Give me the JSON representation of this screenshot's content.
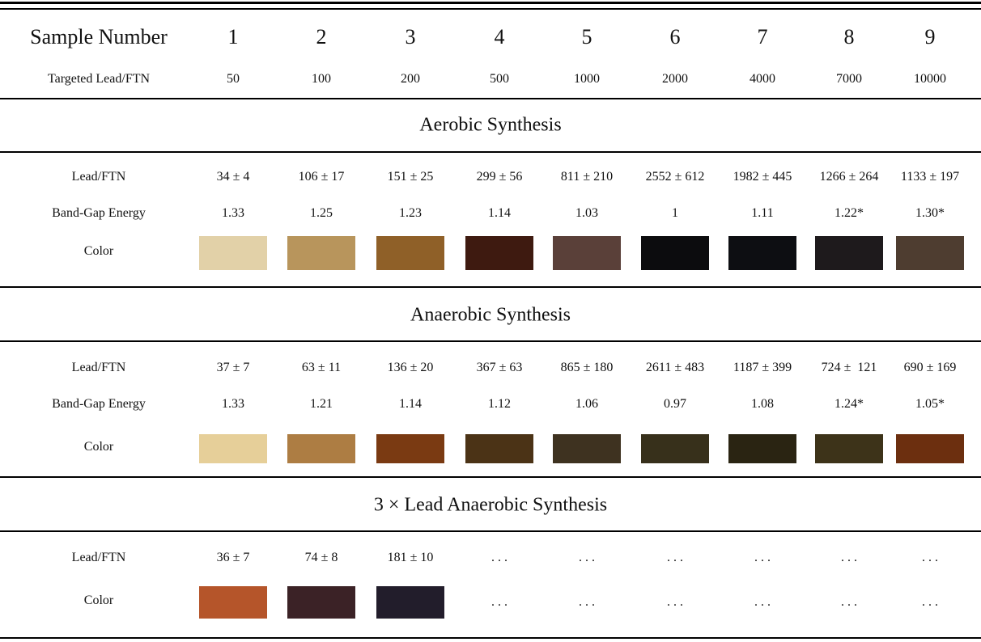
{
  "table": {
    "header": {
      "label": "Sample Number",
      "samples": [
        "1",
        "2",
        "3",
        "4",
        "5",
        "6",
        "7",
        "8",
        "9"
      ]
    },
    "target": {
      "label": "Targeted Lead/FTN",
      "values": [
        "50",
        "100",
        "200",
        "500",
        "1000",
        "2000",
        "4000",
        "7000",
        "10000"
      ]
    },
    "sections": [
      {
        "title": "Aerobic Synthesis",
        "rows": [
          {
            "label": "Lead/FTN",
            "cells": [
              "34 ± 4",
              "106 ± 17",
              "151 ± 25",
              "299 ± 56",
              "811 ± 210",
              "2552 ± 612",
              "1982 ± 445",
              "1266 ± 264",
              "1133 ± 197"
            ]
          },
          {
            "label": "Band-Gap Energy",
            "cells": [
              "1.33",
              "1.25",
              "1.23",
              "1.14",
              "1.03",
              "1",
              "1.11",
              "1.22*",
              "1.30*"
            ]
          }
        ],
        "color_label": "Color",
        "colors": [
          "#e2d1a8",
          "#b8955c",
          "#8f6028",
          "#3e1a10",
          "#5a4039",
          "#0c0c0e",
          "#0d0e12",
          "#1e1a1c",
          "#4e3d30"
        ],
        "color_placeholders": []
      },
      {
        "title": "Anaerobic Synthesis",
        "rows": [
          {
            "label": "Lead/FTN",
            "cells": [
              "37 ± 7",
              "63 ± 11",
              "136 ± 20",
              "367 ± 63",
              "865 ± 180",
              "2611 ± 483",
              "1187 ± 399",
              "724 ±  121",
              "690 ± 169"
            ]
          },
          {
            "label": "Band-Gap Energy",
            "cells": [
              "1.33",
              "1.21",
              "1.14",
              "1.12",
              "1.06",
              "0.97",
              "1.08",
              "1.24*",
              "1.05*"
            ]
          }
        ],
        "color_label": "Color",
        "colors": [
          "#e6cf99",
          "#ad7d43",
          "#7a3a12",
          "#4b3316",
          "#3e3220",
          "#37301b",
          "#2a2412",
          "#3d3319",
          "#6c2f0f"
        ],
        "color_placeholders": []
      },
      {
        "title": "3 × Lead Anaerobic Synthesis",
        "rows": [
          {
            "label": "Lead/FTN",
            "cells": [
              "36 ± 7",
              "74 ± 8",
              "181 ± 10",
              ". . .",
              ". . .",
              ". . .",
              ". . .",
              ". . .",
              ". . ."
            ]
          }
        ],
        "color_label": "Color",
        "colors": [
          "#b5552a",
          "#3b2226",
          "#221d2b"
        ],
        "color_placeholders": [
          ". . .",
          ". . .",
          ". . .",
          ". . .",
          ". . .",
          ". . ."
        ]
      }
    ]
  }
}
